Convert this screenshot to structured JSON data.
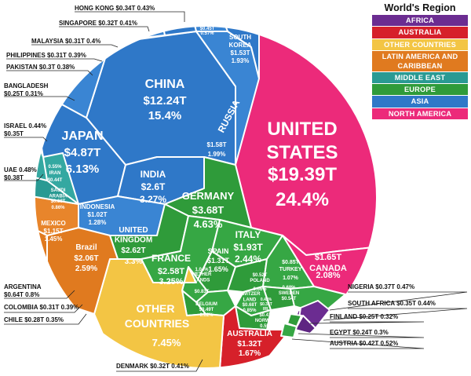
{
  "legend": {
    "title": "World's Region",
    "items": [
      {
        "label": "AFRICA",
        "color": "#6b2c91"
      },
      {
        "label": "AUSTRALIA",
        "color": "#d6202a"
      },
      {
        "label": "OTHER COUNTRIES",
        "color": "#f3c544"
      },
      {
        "label": "LATIN AMERICA AND CARIBBEAN",
        "color": "#e07a1f"
      },
      {
        "label": "MIDDLE EAST",
        "color": "#2a9a93"
      },
      {
        "label": "EUROPE",
        "color": "#2f9b3a"
      },
      {
        "label": "ASIA",
        "color": "#2f78c8"
      },
      {
        "label": "NORTH AMERICA",
        "color": "#ec2a7a"
      }
    ]
  },
  "chart_data": {
    "type": "voronoi-treemap",
    "unit": "USD trillions (GDP)",
    "cells": [
      {
        "name": "UNITED STATES",
        "value": "$19.39T",
        "share": "24.4%",
        "region": "NORTH AMERICA"
      },
      {
        "name": "CHINA",
        "value": "$12.24T",
        "share": "15.4%",
        "region": "ASIA"
      },
      {
        "name": "JAPAN",
        "value": "$4.87T",
        "share": "6.13%",
        "region": "ASIA"
      },
      {
        "name": "GERMANY",
        "value": "$3.68T",
        "share": "4.63%",
        "region": "EUROPE"
      },
      {
        "name": "INDIA",
        "value": "$2.6T",
        "share": "3.27%",
        "region": "ASIA"
      },
      {
        "name": "UNITED KINGDOM",
        "value": "$2.62T",
        "share": "3.3%",
        "region": "EUROPE"
      },
      {
        "name": "FRANCE",
        "value": "$2.58T",
        "share": "3.25%",
        "region": "EUROPE"
      },
      {
        "name": "Brazil",
        "value": "$2.06T",
        "share": "2.59%",
        "region": "LATIN AMERICA AND CARIBBEAN"
      },
      {
        "name": "ITALY",
        "value": "$1.93T",
        "share": "2.44%",
        "region": "EUROPE"
      },
      {
        "name": "CANADA",
        "value": "$1.65T",
        "share": "2.08%",
        "region": "NORTH AMERICA"
      },
      {
        "name": "RUSSIA",
        "value": "$1.58T",
        "share": "1.99%",
        "region": "ASIA"
      },
      {
        "name": "SOUTH KOREA",
        "value": "$1.53T",
        "share": "1.93%",
        "region": "ASIA"
      },
      {
        "name": "AUSTRALIA",
        "value": "$1.32T",
        "share": "1.67%",
        "region": "AUSTRALIA"
      },
      {
        "name": "SPAIN",
        "value": "$1.31T",
        "share": "1.65%",
        "region": "EUROPE"
      },
      {
        "name": "MEXICO",
        "value": "$1.15T",
        "share": "1.45%",
        "region": "LATIN AMERICA AND CARIBBEAN"
      },
      {
        "name": "INDONESIA",
        "value": "$1.02T",
        "share": "1.28%",
        "region": "ASIA"
      },
      {
        "name": "TURKEY",
        "value": "$0.85T",
        "share": "1.07%",
        "region": "EUROPE"
      },
      {
        "name": "NETHERLANDS",
        "value": "$0.83T",
        "share": "1.04%",
        "region": "EUROPE"
      },
      {
        "name": "SAUDI ARABIA",
        "value": "$0.68T",
        "share": "0.86%",
        "region": "MIDDLE EAST"
      },
      {
        "name": "SWITZERLAND",
        "value": "$0.68T",
        "share": "0.85%",
        "region": "EUROPE"
      },
      {
        "name": "SWEDEN",
        "value": "$0.54T",
        "share": "0.68%",
        "region": "EUROPE"
      },
      {
        "name": "POLAND",
        "value": "$0.52T",
        "share": "0.66%",
        "region": "EUROPE"
      },
      {
        "name": "BELGIUM",
        "value": "$0.49T",
        "share": "0.62%",
        "region": "EUROPE"
      },
      {
        "name": "THAILAND",
        "value": "$0.45T",
        "share": "0.57%",
        "region": "ASIA"
      },
      {
        "name": "IRAN",
        "value": "$0.44T",
        "share": "0.55%",
        "region": "MIDDLE EAST"
      },
      {
        "name": "NORWAY",
        "value": "$0.4T",
        "share": "0.5%",
        "region": "EUROPE"
      },
      {
        "name": "IRL",
        "value": "$0.33T",
        "share": "0.42%",
        "region": "EUROPE"
      },
      {
        "name": "OTHER COUNTRIES",
        "value": "",
        "share": "7.45%",
        "region": "OTHER COUNTRIES"
      }
    ],
    "callouts": [
      {
        "text": "HONG KONG $0.34T 0.43%",
        "region": "ASIA"
      },
      {
        "text": "SINGAPORE $0.32T 0.41%",
        "region": "ASIA"
      },
      {
        "text": "MALAYSIA $0.31T 0.4%",
        "region": "ASIA"
      },
      {
        "text": "PHILIPPINES $0.31T 0.39%",
        "region": "ASIA"
      },
      {
        "text": "PAKISTAN $0.3T 0.38%",
        "region": "ASIA"
      },
      {
        "text": "BANGLADESH $0.25T 0.31%",
        "region": "ASIA"
      },
      {
        "text": "ISRAEL 0.44% $0.35T",
        "region": "MIDDLE EAST"
      },
      {
        "text": "UAE 0.48% $0.38T",
        "region": "MIDDLE EAST"
      },
      {
        "text": "ARGENTINA $0.64T 0.8%",
        "region": "LATIN AMERICA AND CARIBBEAN"
      },
      {
        "text": "COLOMBIA $0.31T 0.39%",
        "region": "LATIN AMERICA AND CARIBBEAN"
      },
      {
        "text": "CHILE $0.28T 0.35%",
        "region": "LATIN AMERICA AND CARIBBEAN"
      },
      {
        "text": "DENMARK $0.32T 0.41%",
        "region": "EUROPE"
      },
      {
        "text": "NIGERIA $0.37T 0.47%",
        "region": "AFRICA"
      },
      {
        "text": "SOUTH AFRICA $0.35T 0.44%",
        "region": "AFRICA"
      },
      {
        "text": "FINLAND $0.25T 0.32%",
        "region": "EUROPE"
      },
      {
        "text": "EGYPT $0.24T 0.3%",
        "region": "AFRICA"
      },
      {
        "text": "AUSTRIA $0.42T 0.52%",
        "region": "EUROPE"
      }
    ]
  }
}
